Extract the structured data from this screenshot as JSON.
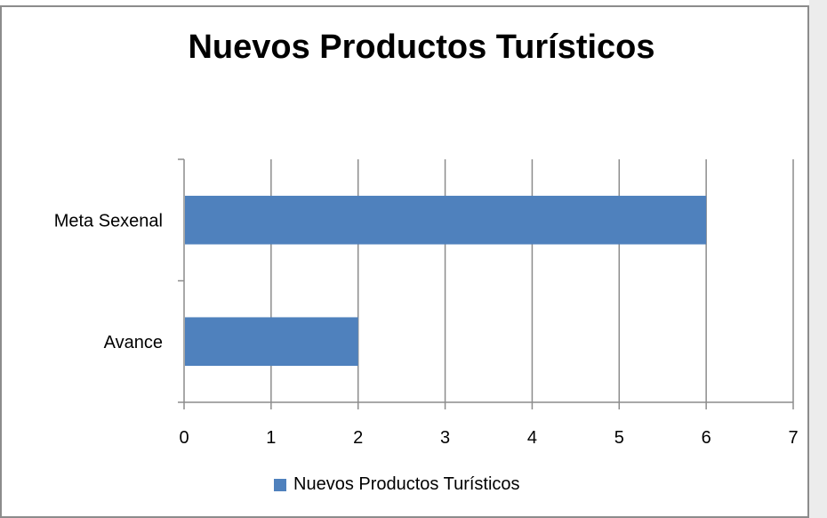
{
  "chart_data": {
    "type": "bar",
    "orientation": "horizontal",
    "title": "Nuevos Productos Turísticos",
    "categories": [
      "Meta Sexenal",
      "Avance"
    ],
    "series": [
      {
        "name": "Nuevos Productos Turísticos",
        "values": [
          6,
          2
        ]
      }
    ],
    "xlim": [
      0,
      7
    ],
    "x_ticks": [
      "0",
      "1",
      "2",
      "3",
      "4",
      "5",
      "6",
      "7"
    ],
    "grid": "vertical",
    "legend_position": "bottom",
    "colors": {
      "bar": "#4f81bd",
      "gridline": "#8c8c8c",
      "axis": "#8c8c8c"
    }
  }
}
